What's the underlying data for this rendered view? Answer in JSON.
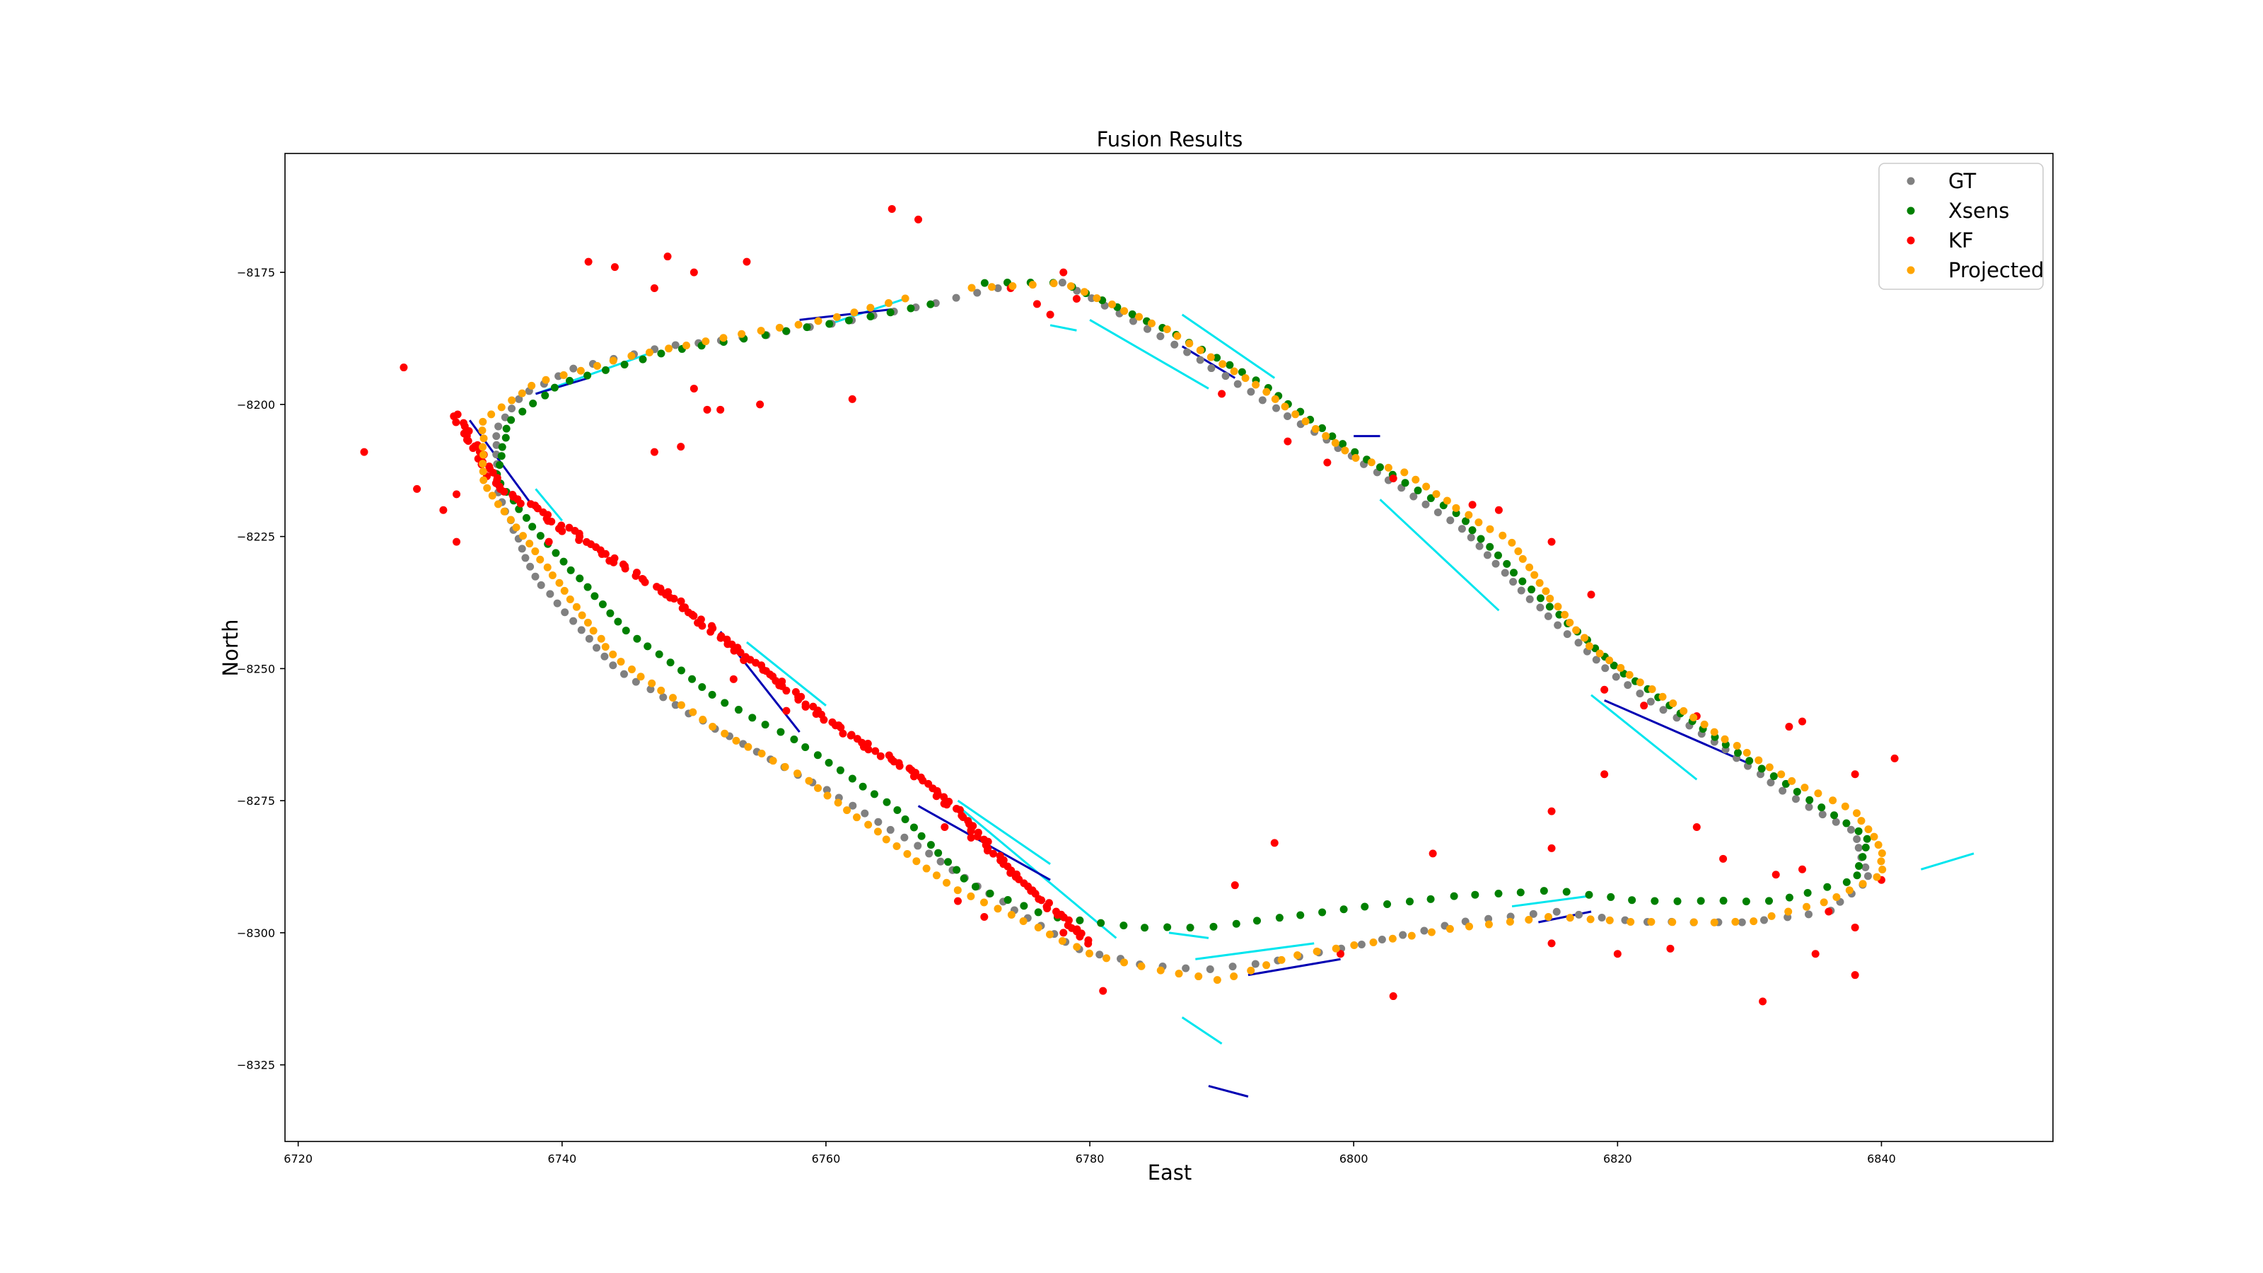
{
  "chart_data": {
    "type": "scatter",
    "title": "Fusion Results",
    "xlabel": "East",
    "ylabel": "North",
    "xlim": [
      6719,
      6853
    ],
    "ylim": [
      -8339.5,
      -8152.5
    ],
    "xticks": [
      6720,
      6740,
      6760,
      6780,
      6800,
      6820,
      6840
    ],
    "yticks": [
      -8175,
      -8200,
      -8225,
      -8250,
      -8275,
      -8300,
      -8325
    ],
    "ytick_labels": [
      "−8175",
      "−8200",
      "−8225",
      "−8250",
      "−8275",
      "−8300",
      "−8325"
    ],
    "grid": false,
    "legend_position": "top-right",
    "series": [
      {
        "name": "GT",
        "color": "#808080",
        "path": [
          [
            6778,
            -8177
          ],
          [
            6786,
            -8188
          ],
          [
            6793,
            -8199
          ],
          [
            6800,
            -8210
          ],
          [
            6808,
            -8223
          ],
          [
            6813,
            -8236
          ],
          [
            6820,
            -8252
          ],
          [
            6828,
            -8265
          ],
          [
            6833,
            -8274
          ],
          [
            6838,
            -8281
          ],
          [
            6839,
            -8290
          ],
          [
            6836,
            -8296
          ],
          [
            6830,
            -8298
          ],
          [
            6822,
            -8298
          ],
          [
            6815,
            -8296
          ],
          [
            6808,
            -8298
          ],
          [
            6801,
            -8302
          ],
          [
            6795,
            -8305
          ],
          [
            6789,
            -8307
          ],
          [
            6784,
            -8306
          ],
          [
            6779,
            -8303
          ],
          [
            6772,
            -8292
          ],
          [
            6766,
            -8282
          ],
          [
            6760,
            -8273
          ],
          [
            6752,
            -8262
          ],
          [
            6744,
            -8250
          ],
          [
            6738,
            -8233
          ],
          [
            6735,
            -8216
          ],
          [
            6735,
            -8205
          ],
          [
            6737,
            -8198
          ],
          [
            6741,
            -8193
          ],
          [
            6748,
            -8189
          ],
          [
            6755,
            -8187
          ],
          [
            6762,
            -8184
          ],
          [
            6768,
            -8181
          ],
          [
            6773,
            -8178
          ]
        ],
        "points": 200
      },
      {
        "name": "Xsens",
        "color": "#008000",
        "path": [
          [
            6772,
            -8177
          ],
          [
            6778,
            -8177
          ],
          [
            6786,
            -8186
          ],
          [
            6793,
            -8196
          ],
          [
            6800,
            -8209
          ],
          [
            6808,
            -8221
          ],
          [
            6813,
            -8234
          ],
          [
            6820,
            -8250
          ],
          [
            6828,
            -8264
          ],
          [
            6834,
            -8274
          ],
          [
            6839,
            -8282
          ],
          [
            6838,
            -8290
          ],
          [
            6832,
            -8294
          ],
          [
            6822,
            -8294
          ],
          [
            6815,
            -8292
          ],
          [
            6808,
            -8293
          ],
          [
            6801,
            -8295
          ],
          [
            6795,
            -8297
          ],
          [
            6789,
            -8299
          ],
          [
            6784,
            -8299
          ],
          [
            6777,
            -8297
          ],
          [
            6771,
            -8291
          ],
          [
            6765,
            -8276
          ],
          [
            6758,
            -8264
          ],
          [
            6752,
            -8256
          ],
          [
            6745,
            -8243
          ],
          [
            6738,
            -8224
          ],
          [
            6735,
            -8214
          ],
          [
            6736,
            -8203
          ],
          [
            6740,
            -8196
          ],
          [
            6748,
            -8190
          ],
          [
            6755,
            -8187
          ],
          [
            6762,
            -8184
          ],
          [
            6768,
            -8181
          ]
        ],
        "points": 200
      },
      {
        "name": "KF",
        "color": "#ff0000",
        "points_xy": [
          [
            6765,
            -8163
          ],
          [
            6767,
            -8165
          ],
          [
            6742,
            -8173
          ],
          [
            6744,
            -8174
          ],
          [
            6748,
            -8172
          ],
          [
            6750,
            -8175
          ],
          [
            6754,
            -8173
          ],
          [
            6747,
            -8178
          ],
          [
            6728,
            -8193
          ],
          [
            6725,
            -8209
          ],
          [
            6729,
            -8216
          ],
          [
            6732,
            -8217
          ],
          [
            6731,
            -8220
          ],
          [
            6732,
            -8226
          ],
          [
            6750,
            -8197
          ],
          [
            6751,
            -8201
          ],
          [
            6752,
            -8201
          ],
          [
            6755,
            -8200
          ],
          [
            6747,
            -8209
          ],
          [
            6749,
            -8208
          ],
          [
            6762,
            -8199
          ],
          [
            6776,
            -8181
          ],
          [
            6777,
            -8183
          ],
          [
            6779,
            -8180
          ],
          [
            6778,
            -8175
          ],
          [
            6774,
            -8178
          ],
          [
            6790,
            -8198
          ],
          [
            6795,
            -8207
          ],
          [
            6798,
            -8211
          ],
          [
            6803,
            -8214
          ],
          [
            6809,
            -8219
          ],
          [
            6811,
            -8220
          ],
          [
            6815,
            -8226
          ],
          [
            6818,
            -8236
          ],
          [
            6819,
            -8254
          ],
          [
            6822,
            -8257
          ],
          [
            6826,
            -8259
          ],
          [
            6833,
            -8261
          ],
          [
            6834,
            -8260
          ],
          [
            6841,
            -8267
          ],
          [
            6838,
            -8270
          ],
          [
            6819,
            -8270
          ],
          [
            6815,
            -8277
          ],
          [
            6826,
            -8280
          ],
          [
            6828,
            -8286
          ],
          [
            6832,
            -8289
          ],
          [
            6834,
            -8288
          ],
          [
            6836,
            -8296
          ],
          [
            6838,
            -8299
          ],
          [
            6840,
            -8290
          ],
          [
            6815,
            -8284
          ],
          [
            6806,
            -8285
          ],
          [
            6794,
            -8283
          ],
          [
            6791,
            -8291
          ],
          [
            6799,
            -8304
          ],
          [
            6803,
            -8312
          ],
          [
            6815,
            -8302
          ],
          [
            6820,
            -8304
          ],
          [
            6824,
            -8303
          ],
          [
            6831,
            -8313
          ],
          [
            6835,
            -8304
          ],
          [
            6838,
            -8308
          ],
          [
            6781,
            -8311
          ],
          [
            6770,
            -8294
          ],
          [
            6772,
            -8297
          ],
          [
            6778,
            -8300
          ],
          [
            6769,
            -8280
          ],
          [
            6771,
            -8282
          ],
          [
            6757,
            -8258
          ],
          [
            6753,
            -8252
          ],
          [
            6739,
            -8226
          ],
          [
            6740,
            -8224
          ]
        ],
        "path": [
          [
            6732,
            -8202
          ],
          [
            6735,
            -8215
          ],
          [
            6740,
            -8223
          ],
          [
            6748,
            -8236
          ],
          [
            6755,
            -8250
          ],
          [
            6762,
            -8263
          ],
          [
            6768,
            -8272
          ],
          [
            6772,
            -8283
          ],
          [
            6776,
            -8293
          ],
          [
            6780,
            -8302
          ]
        ],
        "points": 200
      },
      {
        "name": "Projected",
        "color": "#ffa500",
        "path": [
          [
            6771,
            -8178
          ],
          [
            6778,
            -8177
          ],
          [
            6786,
            -8186
          ],
          [
            6793,
            -8197
          ],
          [
            6800,
            -8210
          ],
          [
            6804,
            -8213
          ],
          [
            6808,
            -8220
          ],
          [
            6812,
            -8226
          ],
          [
            6815,
            -8237
          ],
          [
            6818,
            -8246
          ],
          [
            6822,
            -8253
          ],
          [
            6828,
            -8263
          ],
          [
            6833,
            -8271
          ],
          [
            6838,
            -8277
          ],
          [
            6840,
            -8284
          ],
          [
            6840,
            -8289
          ],
          [
            6836,
            -8294
          ],
          [
            6830,
            -8298
          ],
          [
            6822,
            -8298
          ],
          [
            6815,
            -8297
          ],
          [
            6808,
            -8299
          ],
          [
            6801,
            -8302
          ],
          [
            6796,
            -8304
          ],
          [
            6790,
            -8309
          ],
          [
            6785,
            -8307
          ],
          [
            6780,
            -8304
          ],
          [
            6776,
            -8299
          ],
          [
            6770,
            -8292
          ],
          [
            6765,
            -8283
          ],
          [
            6758,
            -8270
          ],
          [
            6752,
            -8262
          ],
          [
            6744,
            -8248
          ],
          [
            6738,
            -8228
          ],
          [
            6734,
            -8215
          ],
          [
            6734,
            -8203
          ],
          [
            6738,
            -8196
          ],
          [
            6745,
            -8191
          ],
          [
            6753,
            -8187
          ],
          [
            6760,
            -8184
          ],
          [
            6766,
            -8180
          ]
        ],
        "points": 230
      }
    ],
    "segments": [
      {
        "color": "#00e5ee",
        "lines": [
          [
            [
              6780,
              -8184
            ],
            [
              6789,
              -8197
            ]
          ],
          [
            [
              6787,
              -8183
            ],
            [
              6794,
              -8195
            ]
          ],
          [
            [
              6802,
              -8218
            ],
            [
              6811,
              -8239
            ]
          ],
          [
            [
              6818,
              -8255
            ],
            [
              6826,
              -8271
            ]
          ],
          [
            [
              6766,
              -8180
            ],
            [
              6760,
              -8185
            ]
          ],
          [
            [
              6747,
              -8190
            ],
            [
              6738,
              -8198
            ]
          ],
          [
            [
              6770,
              -8276
            ],
            [
              6782,
              -8301
            ]
          ],
          [
            [
              6777,
              -8287
            ],
            [
              6770,
              -8275
            ]
          ],
          [
            [
              6754,
              -8245
            ],
            [
              6760,
              -8257
            ]
          ],
          [
            [
              6738,
              -8216
            ],
            [
              6740,
              -8222
            ]
          ],
          [
            [
              6788,
              -8305
            ],
            [
              6797,
              -8302
            ]
          ],
          [
            [
              6787,
              -8316
            ],
            [
              6790,
              -8321
            ]
          ],
          [
            [
              6812,
              -8295
            ],
            [
              6818,
              -8293
            ]
          ],
          [
            [
              6843,
              -8288
            ],
            [
              6847,
              -8285
            ]
          ],
          [
            [
              6789,
              -8301
            ],
            [
              6786,
              -8300
            ]
          ],
          [
            [
              6777,
              -8185
            ],
            [
              6779,
              -8186
            ]
          ]
        ]
      },
      {
        "color": "#0000b3",
        "lines": [
          [
            [
              6752,
              -8243
            ],
            [
              6758,
              -8262
            ]
          ],
          [
            [
              6733,
              -8203
            ],
            [
              6738,
              -8220
            ]
          ],
          [
            [
              6738,
              -8198
            ],
            [
              6742,
              -8195
            ]
          ],
          [
            [
              6758,
              -8184
            ],
            [
              6765,
              -8182
            ]
          ],
          [
            [
              6787,
              -8189
            ],
            [
              6791,
              -8195
            ]
          ],
          [
            [
              6819,
              -8256
            ],
            [
              6830,
              -8268
            ]
          ],
          [
            [
              6814,
              -8298
            ],
            [
              6818,
              -8296
            ]
          ],
          [
            [
              6792,
              -8308
            ],
            [
              6799,
              -8305
            ]
          ],
          [
            [
              6767,
              -8276
            ],
            [
              6777,
              -8290
            ]
          ],
          [
            [
              6789,
              -8329
            ],
            [
              6792,
              -8331
            ]
          ],
          [
            [
              6800,
              -8206
            ],
            [
              6802,
              -8206
            ]
          ]
        ]
      }
    ]
  }
}
